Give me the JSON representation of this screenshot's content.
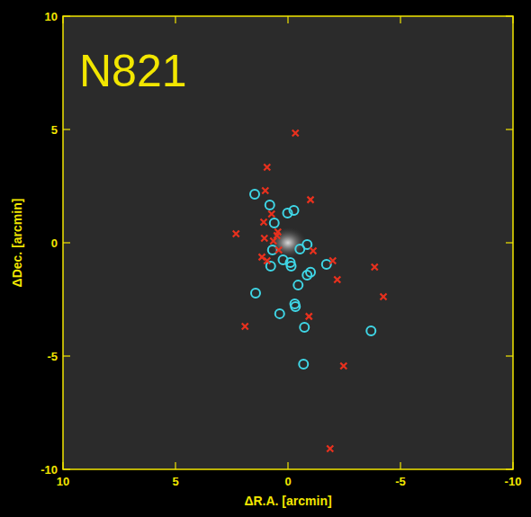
{
  "chart_data": {
    "type": "scatter",
    "title": "N821",
    "x_label": "ΔR.A. [arcmin]",
    "y_label": "ΔDec. [arcmin]",
    "xlim": [
      10,
      -10
    ],
    "ylim": [
      -10,
      10
    ],
    "xticks": [
      10,
      5,
      0,
      -5,
      -10
    ],
    "yticks": [
      -10,
      -5,
      0,
      5,
      10
    ],
    "grid": false,
    "series": [
      {
        "color": "#3fd6e6",
        "marker": "circle",
        "x": [
          1.48,
          0.81,
          0.02,
          -0.26,
          0.61,
          -0.85,
          -0.53,
          0.69,
          0.22,
          -0.1,
          -0.14,
          0.77,
          -1.0,
          -0.85,
          -1.71,
          -0.45,
          1.44,
          -0.3,
          -0.33,
          0.37,
          -0.73,
          -3.69,
          -0.69
        ],
        "values": [
          2.14,
          1.67,
          1.31,
          1.43,
          0.87,
          -0.08,
          -0.28,
          -0.32,
          -0.75,
          -0.87,
          -1.03,
          -1.03,
          -1.3,
          -1.43,
          -0.95,
          -1.87,
          -2.22,
          -2.7,
          -2.82,
          -3.13,
          -3.73,
          -3.89,
          -5.36
        ]
      },
      {
        "color": "#e8311e",
        "marker": "x",
        "x": [
          -0.33,
          0.93,
          1.01,
          -1.0,
          1.08,
          0.73,
          0.45,
          2.31,
          1.05,
          0.65,
          0.49,
          0.41,
          1.16,
          0.93,
          -1.12,
          -1.99,
          -2.19,
          -3.85,
          -4.24,
          -0.93,
          1.91,
          -2.47,
          -1.87
        ],
        "values": [
          4.84,
          3.33,
          2.3,
          1.9,
          0.91,
          1.27,
          0.48,
          0.4,
          0.2,
          0.08,
          0.32,
          -0.32,
          -0.63,
          -0.79,
          -0.36,
          -0.79,
          -1.63,
          -1.07,
          -2.38,
          -3.25,
          -3.69,
          -5.44,
          -9.09
        ]
      }
    ]
  }
}
